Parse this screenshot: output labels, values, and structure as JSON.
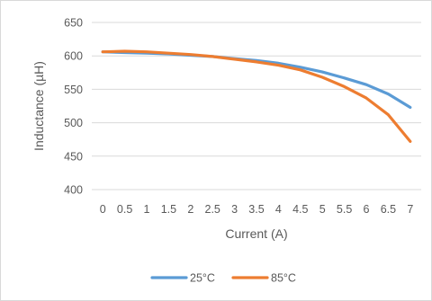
{
  "chart_data": {
    "type": "line",
    "title": "",
    "xlabel": "Current (A)",
    "ylabel": "Inductance (µH)",
    "categories": [
      "0",
      "0.5",
      "1",
      "1.5",
      "2",
      "2.5",
      "3",
      "3.5",
      "4",
      "4.5",
      "5",
      "5.5",
      "6",
      "6.5",
      "7"
    ],
    "x": [
      0,
      0.5,
      1,
      1.5,
      2,
      2.5,
      3,
      3.5,
      4,
      4.5,
      5,
      5.5,
      6,
      6.5,
      7
    ],
    "ylim": [
      400,
      650
    ],
    "yticks": [
      "400",
      "450",
      "500",
      "550",
      "600",
      "650"
    ],
    "grid": true,
    "legend_position": "bottom",
    "series": [
      {
        "name": "25°C",
        "color": "#5b9bd5",
        "values": [
          606,
          605,
          604,
          603,
          601,
          599,
          596,
          593,
          589,
          583,
          576,
          567,
          557,
          543,
          523
        ]
      },
      {
        "name": "85°C",
        "color": "#ed7d31",
        "values": [
          606,
          607,
          606,
          604,
          602,
          599,
          595,
          591,
          586,
          579,
          568,
          554,
          537,
          512,
          472
        ]
      }
    ]
  }
}
